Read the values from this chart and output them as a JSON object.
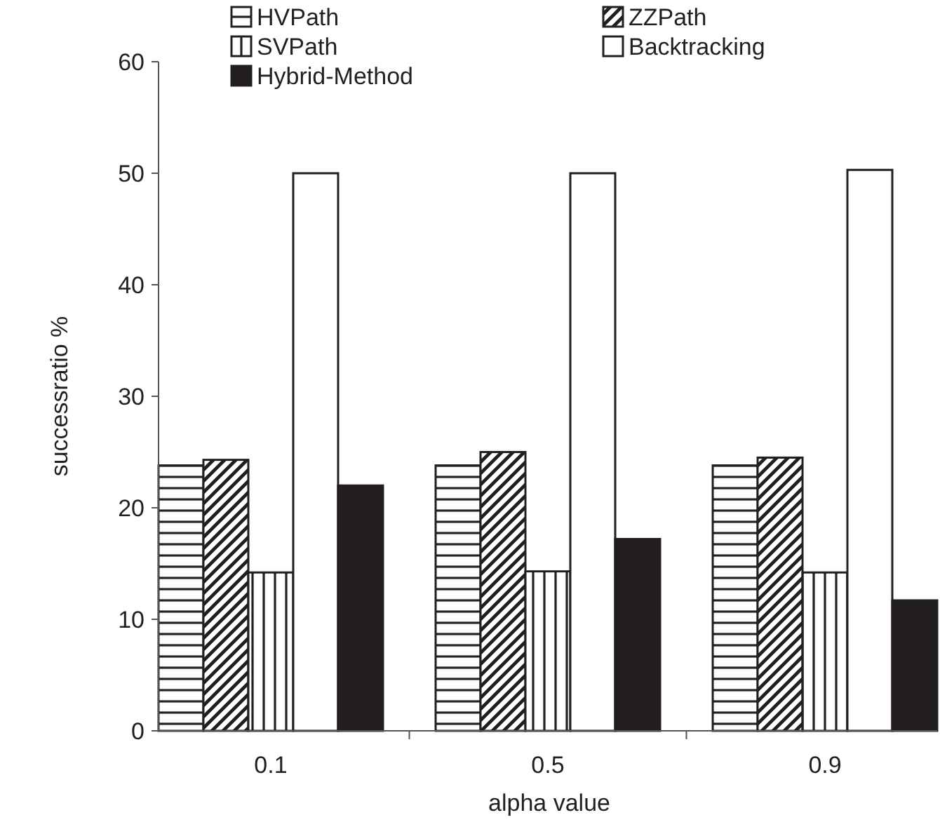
{
  "chart_data": {
    "type": "bar",
    "xlabel": "alpha value",
    "ylabel": "successratio %",
    "categories": [
      "0.1",
      "0.5",
      "0.9"
    ],
    "series": [
      {
        "name": "HVPath",
        "color": "#231f20",
        "values": [
          23.8,
          23.8,
          23.8
        ]
      },
      {
        "name": "ZZPath",
        "color": "#231f20",
        "values": [
          24.3,
          25.0,
          24.5
        ]
      },
      {
        "name": "SVPath",
        "color": "#231f20",
        "values": [
          14.2,
          14.3,
          14.2
        ]
      },
      {
        "name": "Backtracking",
        "color": "#ffffff",
        "values": [
          50.0,
          50.0,
          50.3
        ]
      },
      {
        "name": "Hybrid-Method",
        "color": "#231f20",
        "values": [
          22.0,
          17.2,
          11.7
        ]
      }
    ],
    "ylim": [
      0,
      60
    ],
    "yticks": [
      0,
      10,
      20,
      30,
      40,
      50,
      60
    ],
    "grid": false,
    "legend": "top"
  }
}
